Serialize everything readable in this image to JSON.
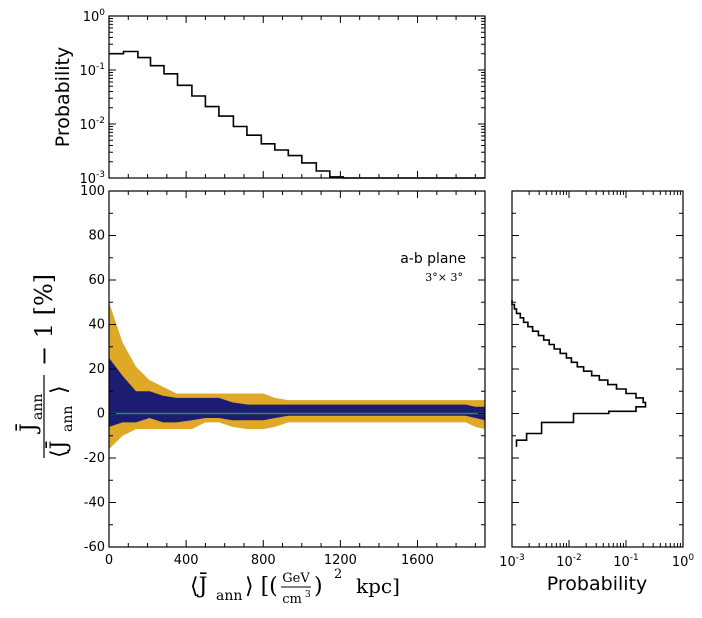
{
  "colors": {
    "outer_band": "#dfa826",
    "inner_band": "#1c1c72",
    "median_line": "#2e8b57",
    "hist_line": "#000000"
  },
  "chart_data": [
    {
      "id": "top_hist",
      "type": "line",
      "description_kind": "step histogram of J_ann",
      "ylabel": "Probability",
      "yscale": "log",
      "ylim": [
        0.001,
        1
      ],
      "xlim": [
        0,
        1950
      ],
      "y_tick_labels": [
        {
          "base": "10",
          "exp": "-3",
          "value": 0.001
        },
        {
          "base": "10",
          "exp": "-2",
          "value": 0.01
        },
        {
          "base": "10",
          "exp": "-1",
          "value": 0.1
        },
        {
          "base": "10",
          "exp": "0",
          "value": 1
        }
      ],
      "bin_edges": [
        0,
        75,
        150,
        215,
        285,
        355,
        430,
        500,
        570,
        645,
        715,
        790,
        860,
        930,
        1000,
        1075,
        1145,
        1215,
        1950
      ],
      "values": [
        0.2,
        0.22,
        0.17,
        0.12,
        0.085,
        0.052,
        0.033,
        0.021,
        0.014,
        0.009,
        0.0062,
        0.0043,
        0.0033,
        0.0026,
        0.0019,
        0.00135,
        0.00105,
        0.001
      ]
    },
    {
      "id": "main_band",
      "type": "area",
      "title": "a-b plane",
      "subtitle": "3°× 3°",
      "xlim": [
        0,
        1950
      ],
      "ylim": [
        -60,
        100
      ],
      "xlabel": {
        "pre": "⟨J̄",
        "sub1": "ann",
        "mid": "⟩ [(",
        "frac_num": "GeV",
        "frac_den": "cm",
        "frac_den_sup": "3",
        "post": ")",
        "post_sup": "2",
        "units": "kpc]"
      },
      "ylabel": {
        "num": "J̄",
        "num_sub": "ann",
        "den": "⟨J̄",
        "den_sub": "ann",
        "den_close": "⟩",
        "tail": "− 1  [%]"
      },
      "x_ticks": [
        0,
        400,
        800,
        1200,
        1600
      ],
      "x_tick_labels": [
        "0",
        "400",
        "800",
        "1200",
        "1600"
      ],
      "y_ticks": [
        -60,
        -40,
        -20,
        0,
        20,
        40,
        60,
        80,
        100
      ],
      "y_tick_labels": [
        "-60",
        "-40",
        "-20",
        "0",
        "20",
        "40",
        "60",
        "80",
        "100"
      ],
      "x": [
        0,
        70,
        140,
        210,
        280,
        350,
        430,
        500,
        570,
        640,
        720,
        800,
        860,
        930,
        1000,
        1100,
        1200,
        1300,
        1400,
        1500,
        1600,
        1700,
        1800,
        1850,
        1900,
        1950
      ],
      "series": [
        {
          "name": "outer_upper",
          "values": [
            50,
            32,
            21,
            15,
            12,
            9,
            9,
            9,
            9,
            9,
            9,
            9,
            7,
            6,
            6,
            6,
            6,
            6,
            6,
            6,
            6,
            6,
            6,
            6,
            6,
            6
          ]
        },
        {
          "name": "outer_lower",
          "values": [
            -16,
            -10,
            -7,
            -7,
            -7,
            -7,
            -7,
            -4,
            -4,
            -6,
            -7,
            -7,
            -6,
            -4,
            -4,
            -4,
            -4,
            -4,
            -4,
            -4,
            -4,
            -4,
            -4,
            -4,
            -6,
            -7
          ]
        },
        {
          "name": "inner_upper",
          "values": [
            25,
            17,
            10,
            10,
            8,
            7,
            7,
            7,
            7,
            5,
            4,
            4,
            4,
            4,
            4,
            4,
            4,
            4,
            4,
            4,
            4,
            4,
            4,
            4,
            3,
            3
          ]
        },
        {
          "name": "inner_lower",
          "values": [
            -6,
            -4,
            -4,
            -2,
            -4,
            -4,
            -3,
            -2,
            -2,
            -3,
            -3,
            -3,
            -2,
            -1,
            -1,
            -1,
            -1,
            -1,
            -1,
            -1,
            -1,
            -1,
            -1,
            -1,
            -2,
            -3
          ]
        },
        {
          "name": "median",
          "values": [
            0,
            0,
            0,
            0,
            0,
            0,
            0,
            0,
            0,
            0,
            0,
            0,
            0,
            0,
            0,
            0,
            0,
            0,
            0,
            0,
            0,
            0,
            0,
            0,
            0,
            0
          ]
        }
      ]
    },
    {
      "id": "side_hist",
      "type": "line",
      "description_kind": "horizontal step histogram of relative deviation",
      "xlabel": "Probability",
      "xscale": "log",
      "xlim": [
        0.001,
        1
      ],
      "ylim": [
        -60,
        100
      ],
      "x_tick_labels": [
        {
          "base": "10",
          "exp": "-3",
          "value": 0.001
        },
        {
          "base": "10",
          "exp": "-2",
          "value": 0.01
        },
        {
          "base": "10",
          "exp": "-1",
          "value": 0.1
        },
        {
          "base": "10",
          "exp": "0",
          "value": 1
        }
      ],
      "bin_edges": [
        -15,
        -12,
        -9,
        -7,
        -4,
        0,
        1,
        3,
        5,
        7,
        9,
        11,
        13,
        15,
        17,
        19,
        21,
        23,
        25,
        27,
        29,
        31,
        33,
        35,
        37,
        39,
        41,
        43,
        45,
        47,
        49,
        51
      ],
      "values": [
        0.0012,
        0.0018,
        0.0033,
        0.0033,
        0.012,
        0.05,
        0.15,
        0.22,
        0.2,
        0.15,
        0.1,
        0.068,
        0.048,
        0.034,
        0.025,
        0.018,
        0.014,
        0.011,
        0.009,
        0.007,
        0.0055,
        0.0045,
        0.0036,
        0.0029,
        0.0023,
        0.0019,
        0.0016,
        0.0014,
        0.0012,
        0.0011,
        0.001
      ]
    }
  ]
}
